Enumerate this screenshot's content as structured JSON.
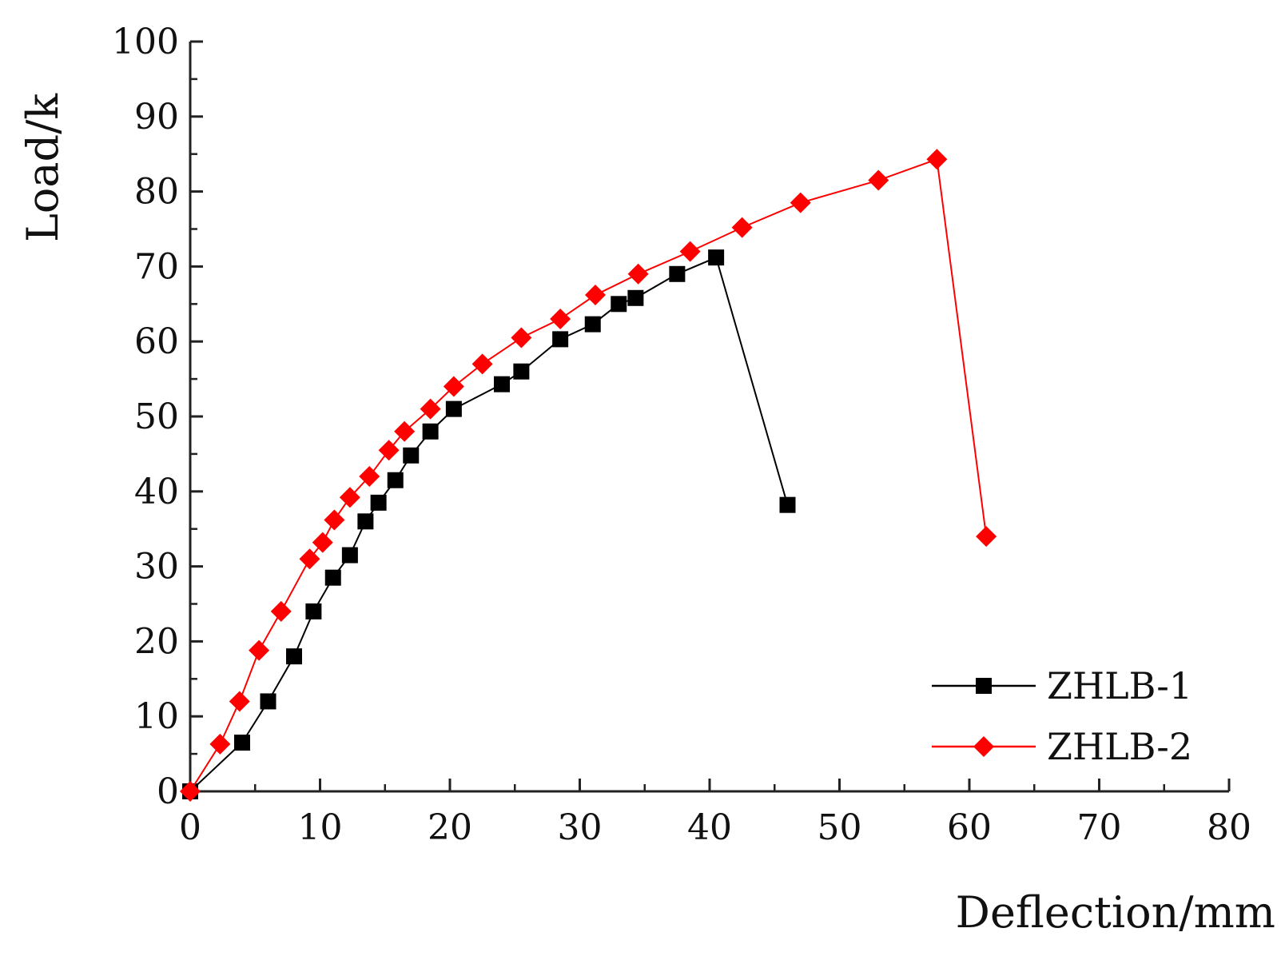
{
  "chart_data": {
    "type": "line",
    "title": "",
    "xlabel": "Deflection/mm",
    "ylabel": "Load/k",
    "xlim": [
      0,
      80
    ],
    "ylim": [
      0,
      100
    ],
    "xticks": [
      0,
      10,
      20,
      30,
      40,
      50,
      60,
      70,
      80
    ],
    "yticks": [
      0,
      10,
      20,
      30,
      40,
      50,
      60,
      70,
      80,
      90,
      100
    ],
    "grid": false,
    "legend_position": "bottom-right",
    "series": [
      {
        "name": "ZHLB-1",
        "color": "#000000",
        "marker": "square",
        "points": [
          [
            0,
            0
          ],
          [
            4,
            6.5
          ],
          [
            6,
            12
          ],
          [
            8,
            18
          ],
          [
            9.5,
            24
          ],
          [
            11,
            28.5
          ],
          [
            12.3,
            31.5
          ],
          [
            13.5,
            36
          ],
          [
            14.5,
            38.5
          ],
          [
            15.8,
            41.5
          ],
          [
            17,
            44.8
          ],
          [
            18.5,
            48
          ],
          [
            20.3,
            51
          ],
          [
            24,
            54.3
          ],
          [
            25.5,
            56
          ],
          [
            28.5,
            60.3
          ],
          [
            31,
            62.3
          ],
          [
            33,
            65
          ],
          [
            34.3,
            65.8
          ],
          [
            37.5,
            69
          ],
          [
            40.5,
            71.2
          ],
          [
            46,
            38.2
          ]
        ]
      },
      {
        "name": "ZHLB-2",
        "color": "#ff0000",
        "marker": "diamond",
        "points": [
          [
            0,
            0
          ],
          [
            2.3,
            6.3
          ],
          [
            3.8,
            12
          ],
          [
            5.3,
            18.8
          ],
          [
            7,
            24
          ],
          [
            9.2,
            31
          ],
          [
            10.2,
            33.2
          ],
          [
            11.1,
            36.2
          ],
          [
            12.3,
            39.2
          ],
          [
            13.8,
            42
          ],
          [
            15.3,
            45.5
          ],
          [
            16.5,
            48
          ],
          [
            18.5,
            51
          ],
          [
            20.3,
            54
          ],
          [
            22.5,
            57
          ],
          [
            25.5,
            60.5
          ],
          [
            28.5,
            63
          ],
          [
            31.2,
            66.2
          ],
          [
            34.5,
            69
          ],
          [
            38.5,
            72
          ],
          [
            42.5,
            75.2
          ],
          [
            47,
            78.5
          ],
          [
            53,
            81.5
          ],
          [
            57.5,
            84.3
          ],
          [
            61.3,
            34
          ]
        ]
      }
    ]
  }
}
